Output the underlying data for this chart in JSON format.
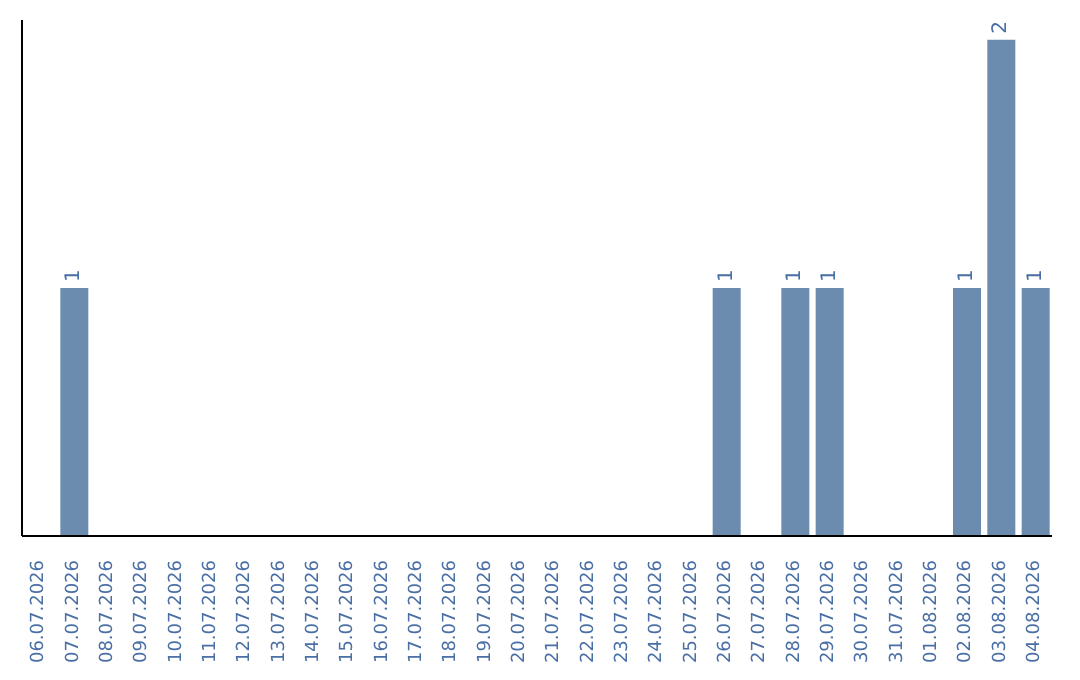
{
  "chart_data": {
    "type": "bar",
    "categories": [
      "06.07.2026",
      "07.07.2026",
      "08.07.2026",
      "09.07.2026",
      "10.07.2026",
      "11.07.2026",
      "12.07.2026",
      "13.07.2026",
      "14.07.2026",
      "15.07.2026",
      "16.07.2026",
      "17.07.2026",
      "18.07.2026",
      "19.07.2026",
      "20.07.2026",
      "21.07.2026",
      "22.07.2026",
      "23.07.2026",
      "24.07.2026",
      "25.07.2026",
      "26.07.2026",
      "27.07.2026",
      "28.07.2026",
      "29.07.2026",
      "30.07.2026",
      "31.07.2026",
      "01.08.2026",
      "02.08.2026",
      "03.08.2026",
      "04.08.2026"
    ],
    "values": [
      0,
      1,
      0,
      0,
      0,
      0,
      0,
      0,
      0,
      0,
      0,
      0,
      0,
      0,
      0,
      0,
      0,
      0,
      0,
      0,
      1,
      0,
      1,
      1,
      0,
      0,
      0,
      1,
      2,
      1
    ],
    "value_labels": [
      null,
      "1",
      null,
      null,
      null,
      null,
      null,
      null,
      null,
      null,
      null,
      null,
      null,
      null,
      null,
      null,
      null,
      null,
      null,
      null,
      "1",
      null,
      "1",
      "1",
      null,
      null,
      null,
      "1",
      "2",
      "1"
    ],
    "color": "#6b8cae",
    "tick_labels": "x",
    "grid": false,
    "legend": false
  }
}
